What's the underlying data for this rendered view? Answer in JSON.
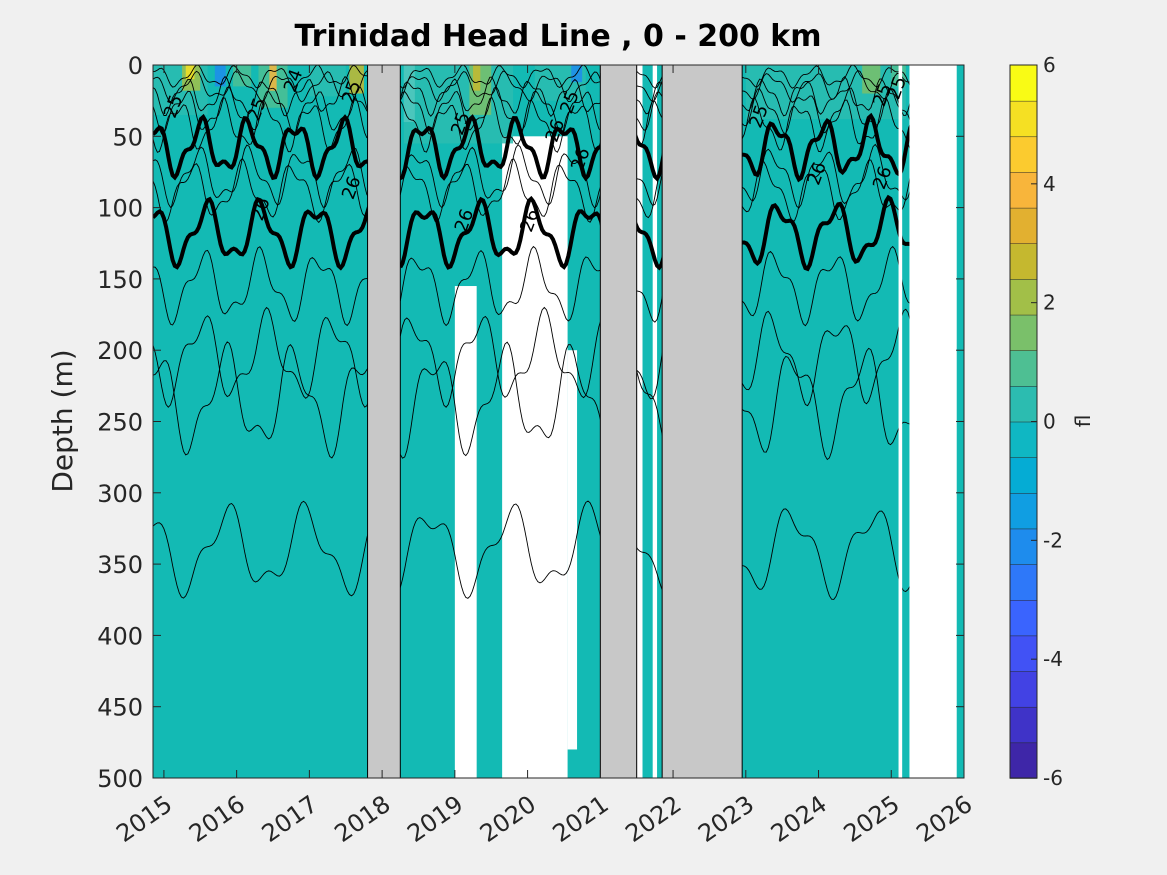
{
  "chart_data": {
    "type": "heatmap",
    "title": "Trinidad Head Line , 0 - 200 km",
    "ylabel": "Depth (m)",
    "xlabel": "",
    "xlim": [
      2014.85,
      2026
    ],
    "ylim": [
      500,
      0
    ],
    "y_reversed": true,
    "x_ticks": [
      2015,
      2016,
      2017,
      2018,
      2019,
      2020,
      2021,
      2022,
      2023,
      2024,
      2025,
      2026
    ],
    "x_tick_labels": [
      "2015",
      "2016",
      "2017",
      "2018",
      "2019",
      "2020",
      "2021",
      "2022",
      "2023",
      "2024",
      "2025",
      "2026"
    ],
    "y_ticks": [
      0,
      50,
      100,
      150,
      200,
      250,
      300,
      350,
      400,
      450,
      500
    ],
    "y_tick_labels": [
      "0",
      "50",
      "100",
      "150",
      "200",
      "250",
      "300",
      "350",
      "400",
      "450",
      "500"
    ],
    "colorbar": {
      "label": "fl",
      "range": [
        -6,
        6
      ],
      "ticks": [
        6,
        4,
        2,
        0,
        -2,
        -4,
        -6
      ],
      "tick_labels": [
        "6",
        "4",
        "2",
        "0",
        "-2",
        "-4",
        "-6"
      ],
      "colors": [
        "#3e26a8",
        "#3f33c8",
        "#4242e4",
        "#4152f5",
        "#3a64fe",
        "#2e78f9",
        "#1e8ced",
        "#109ee2",
        "#05acd4",
        "#0fb7c3",
        "#2cbcb0",
        "#4ebf93",
        "#7ac06a",
        "#a2bf48",
        "#c5b82f",
        "#e2b030",
        "#f8b53b",
        "#fbcb2f",
        "#f5e023",
        "#f9fb15"
      ]
    },
    "background_value": 0.2,
    "background_color": "#13bab4",
    "gaps_gray": [
      [
        2017.8,
        2018.25
      ],
      [
        2021.0,
        2021.5
      ],
      [
        2021.85,
        2022.95
      ]
    ],
    "gaps_white": [
      [
        2025.25,
        2025.9
      ],
      [
        2025.1,
        2025.15
      ]
    ],
    "density_contours": [
      {
        "label": "25",
        "style": "thin"
      },
      {
        "label": "25",
        "style": "thick"
      },
      {
        "label": "26",
        "style": "thick"
      },
      {
        "label": "26",
        "style": "thin"
      }
    ],
    "contour_label_text": [
      "25",
      "25",
      "24",
      "25",
      "26",
      "26",
      "25",
      "26",
      "26",
      "26",
      "26",
      "25",
      "25",
      "26",
      "26",
      "25",
      "25"
    ]
  }
}
